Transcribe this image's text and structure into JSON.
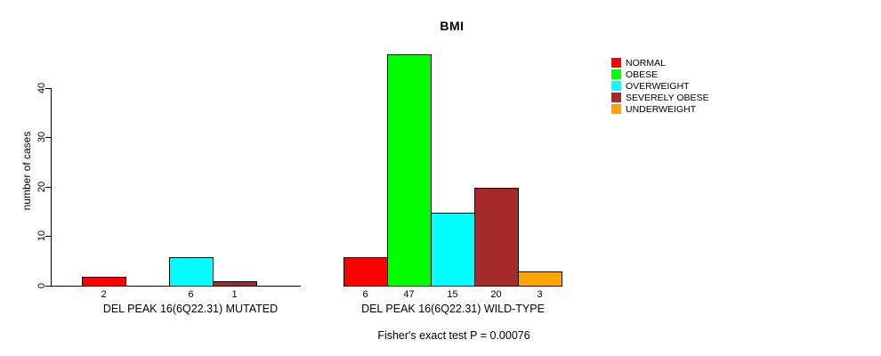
{
  "chart_data": {
    "type": "bar",
    "title": "BMI",
    "ylabel": "number of cases",
    "xlabel": "",
    "yticks": [
      0,
      10,
      20,
      30,
      40
    ],
    "ylim": [
      0,
      47
    ],
    "grid": false,
    "legend_position": "right",
    "categories": [
      "NORMAL",
      "OBESE",
      "OVERWEIGHT",
      "SEVERELY OBESE",
      "UNDERWEIGHT"
    ],
    "colors": [
      "#ff0000",
      "#00ff00",
      "#00ffff",
      "#a52a2a",
      "#ffa500"
    ],
    "groups": [
      {
        "label": "DEL PEAK 16(6Q22.31) MUTATED",
        "values": [
          2,
          0,
          6,
          1,
          0
        ]
      },
      {
        "label": "DEL PEAK 16(6Q22.31) WILD-TYPE",
        "values": [
          6,
          47,
          15,
          20,
          3
        ]
      }
    ],
    "annotation": "Fisher's exact test P = 0.00076"
  }
}
